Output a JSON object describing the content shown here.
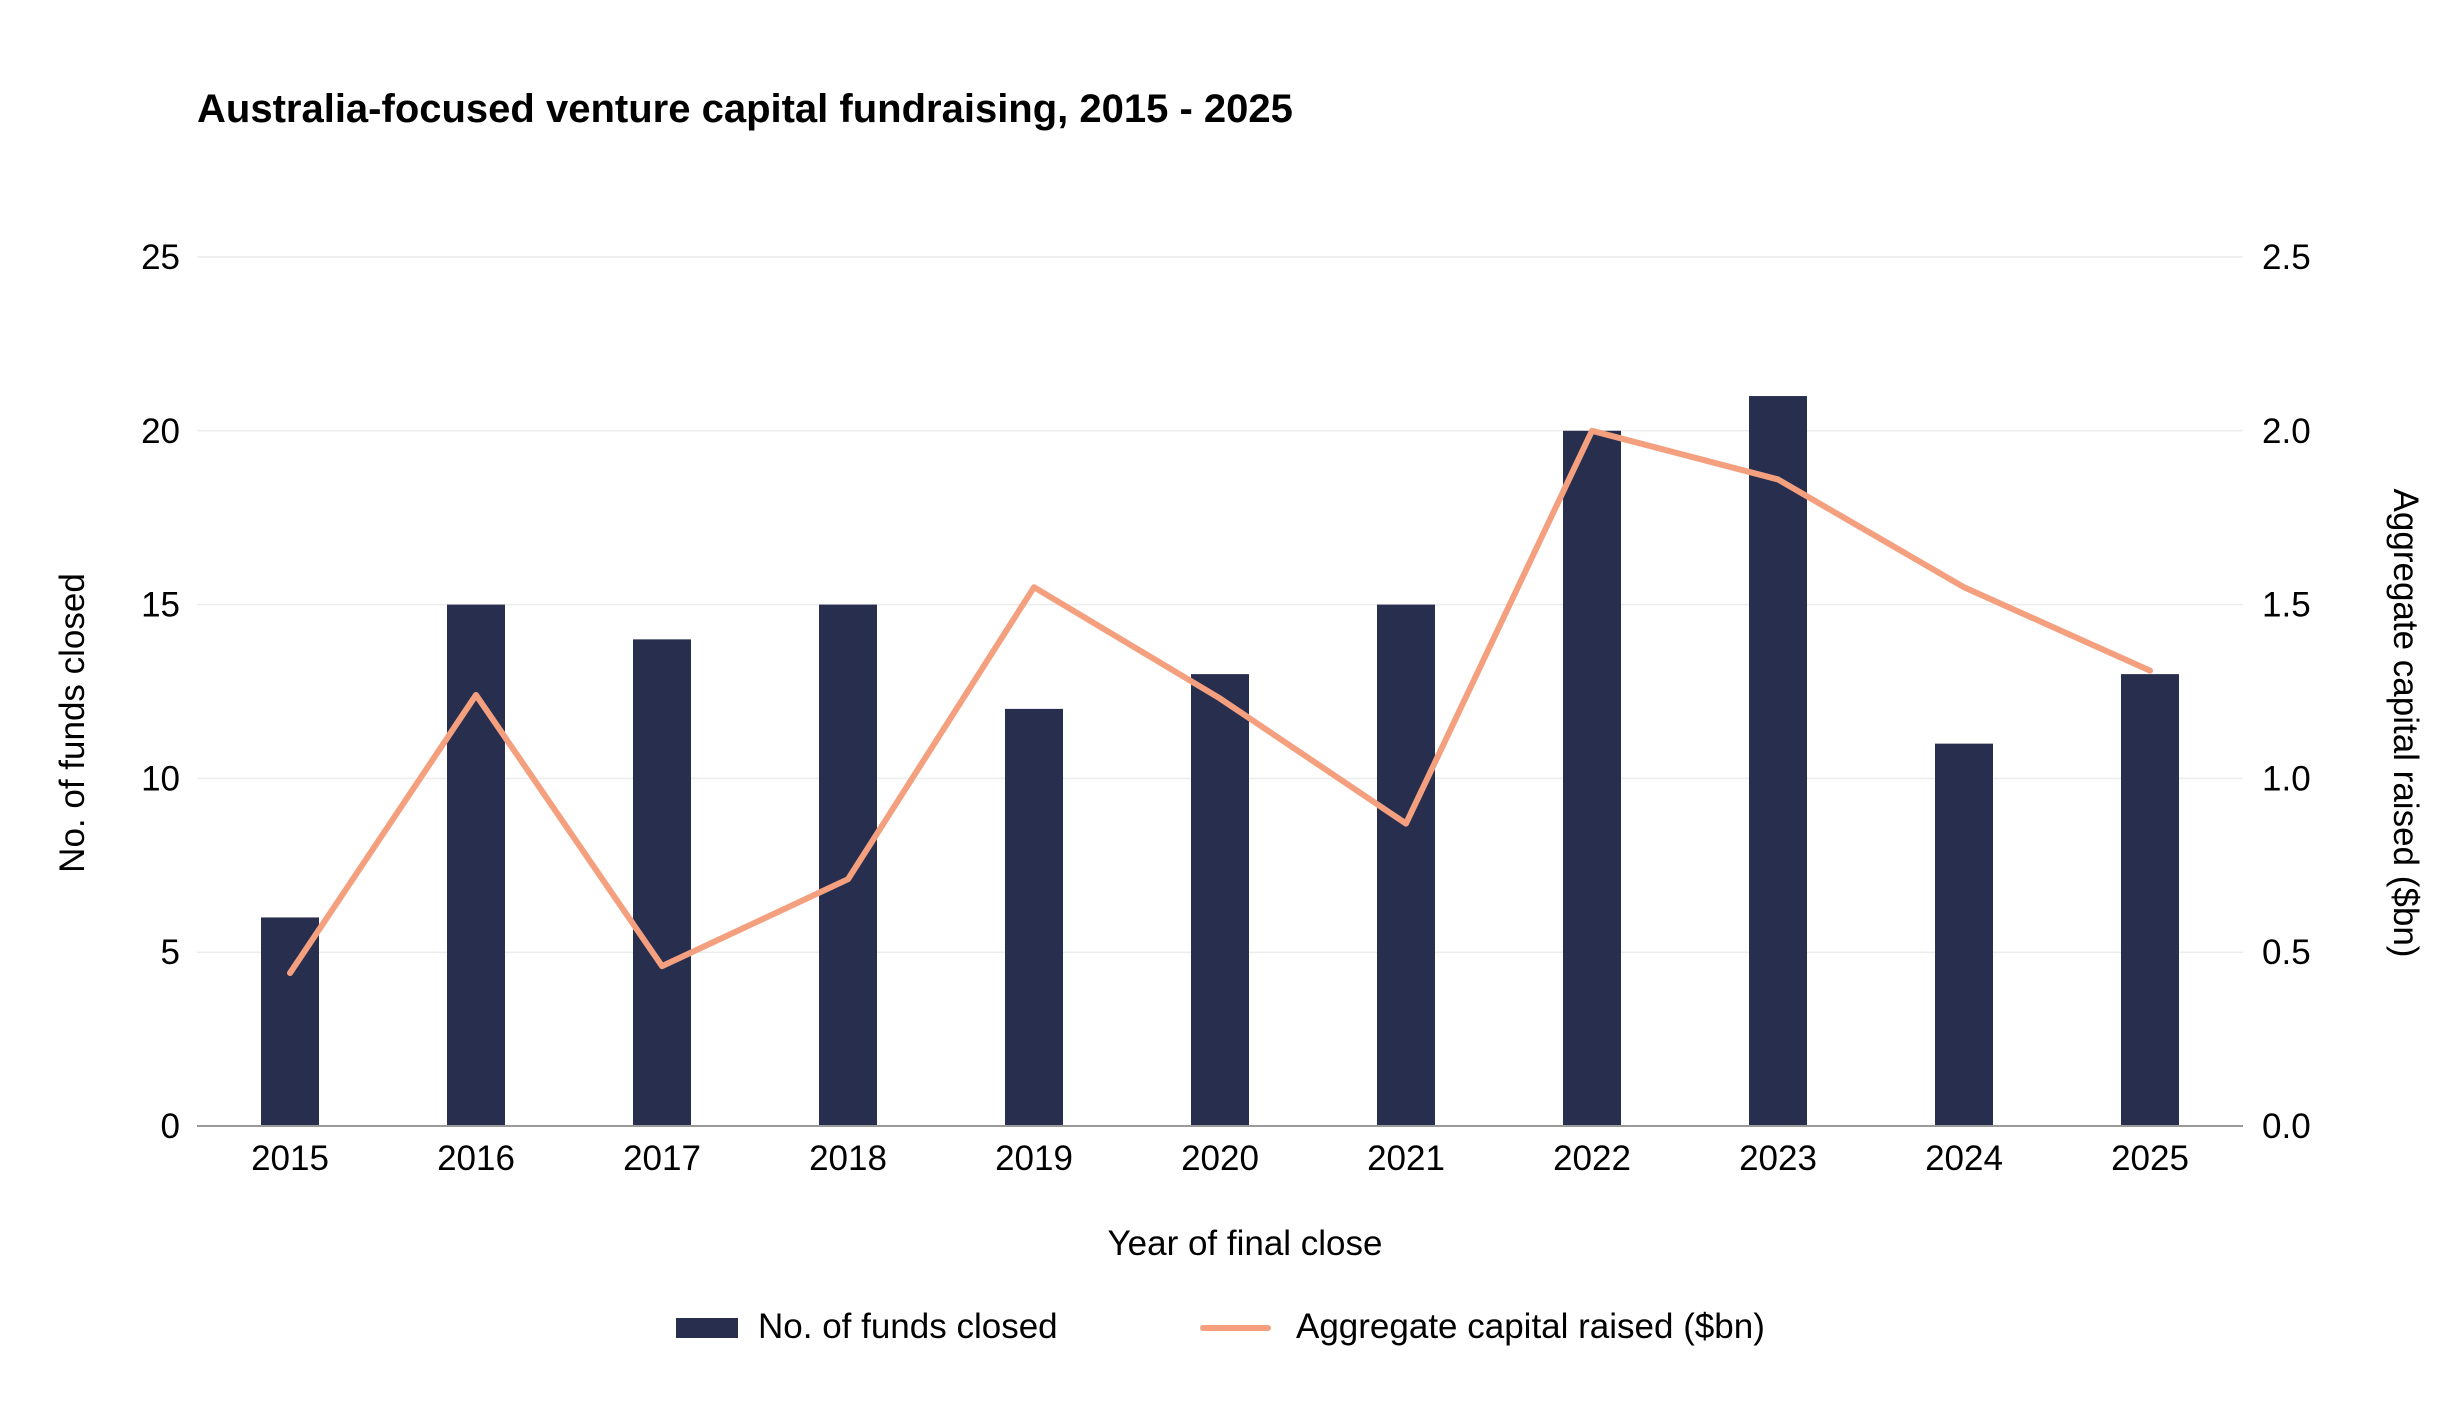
{
  "chart_data": {
    "type": "bar",
    "title": "Australia-focused venture capital fundraising, 2015 - 2025",
    "xlabel": "Year of final close",
    "ylabel": "No. of funds closed",
    "y2label": "Aggregate capital raised ($bn)",
    "categories": [
      "2015",
      "2016",
      "2017",
      "2018",
      "2019",
      "2020",
      "2021",
      "2022",
      "2023",
      "2024",
      "2025"
    ],
    "ylim": [
      0,
      25
    ],
    "y2lim": [
      0,
      2.5
    ],
    "yticks": [
      "0",
      "5",
      "10",
      "15",
      "20",
      "25"
    ],
    "y2ticks": [
      "0.0",
      "0.5",
      "1.0",
      "1.5",
      "2.0",
      "2.5"
    ],
    "grid": true,
    "legend_position": "bottom",
    "series": [
      {
        "name": "No. of funds closed",
        "type": "bar",
        "axis": "left",
        "color": "#282e4e",
        "values": [
          6,
          15,
          14,
          15,
          12,
          13,
          15,
          20,
          21,
          11,
          13
        ]
      },
      {
        "name": "Aggregate capital raised ($bn)",
        "type": "line",
        "axis": "right",
        "color": "#f4a07f",
        "values": [
          0.44,
          1.24,
          0.46,
          0.71,
          1.55,
          1.23,
          0.87,
          2.0,
          1.86,
          1.55,
          1.31
        ]
      }
    ]
  }
}
